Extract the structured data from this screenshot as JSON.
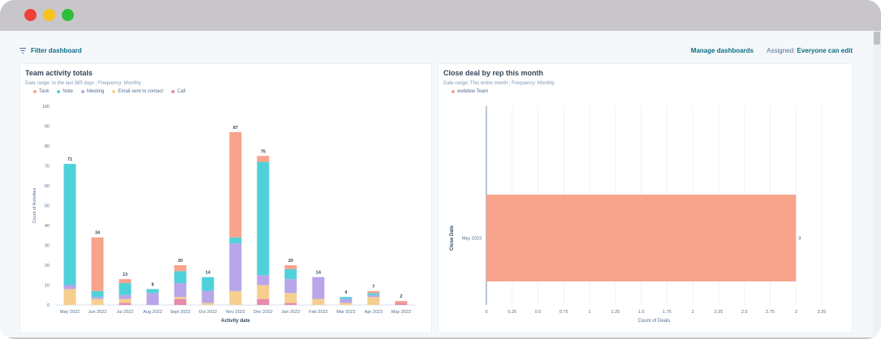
{
  "topbar": {
    "filter_label": "Filter dashboard",
    "manage_label": "Manage dashboards",
    "assigned_label": "Assigned:",
    "assigned_value": "Everyone can edit"
  },
  "colors": {
    "Task": "#f8a38b",
    "Note": "#4fd1d9",
    "Meeting": "#b9a5ea",
    "Email sent to contact": "#f6cf8e",
    "Call": "#e58bab",
    "accent": "#0b6e84"
  },
  "card1": {
    "title": "Team activity totals",
    "date_range": "Date range: In the last 365 days",
    "frequency": "Frequency: Monthly"
  },
  "card2": {
    "title": "Close deal by rep this month",
    "date_range": "Date range: This entire month",
    "frequency": "Frequency: Monthly"
  },
  "chart_data": [
    {
      "type": "bar",
      "stacked": true,
      "xlabel": "Activity date",
      "ylabel": "Count of Activities",
      "ylim": [
        0,
        100
      ],
      "yticks": [
        0,
        10,
        20,
        30,
        40,
        50,
        60,
        70,
        80,
        90,
        100
      ],
      "grid": false,
      "legend_position": "top-left",
      "categories": [
        "May 2022",
        "Jun 2022",
        "Jul 2022",
        "Aug 2022",
        "Sept 2022",
        "Oct 2022",
        "Nov 2022",
        "Dec 2022",
        "Jan 2023",
        "Feb 2023",
        "Mar 2023",
        "Apr 2023",
        "May 2023"
      ],
      "totals": [
        71,
        34,
        13,
        8,
        20,
        14,
        87,
        75,
        20,
        14,
        4,
        7,
        2
      ],
      "series": [
        {
          "name": "Call",
          "values": [
            0,
            0,
            1,
            0,
            3,
            0,
            0,
            3,
            1,
            0,
            0,
            0,
            1
          ]
        },
        {
          "name": "Email sent to contact",
          "values": [
            8,
            3,
            2,
            0,
            1,
            1,
            7,
            7,
            5,
            3,
            1,
            4,
            0
          ]
        },
        {
          "name": "Meeting",
          "values": [
            2,
            1,
            2,
            6,
            7,
            6,
            24,
            5,
            7,
            11,
            2,
            1,
            0
          ]
        },
        {
          "name": "Note",
          "values": [
            61,
            3,
            6,
            2,
            6,
            7,
            3,
            57,
            5,
            0,
            1,
            1,
            0
          ]
        },
        {
          "name": "Task",
          "values": [
            0,
            27,
            2,
            0,
            3,
            0,
            53,
            3,
            2,
            0,
            0,
            1,
            1
          ]
        }
      ]
    },
    {
      "type": "bar",
      "orientation": "horizontal",
      "xlabel": "Count of Deals",
      "ylabel": "Close Date",
      "xlim": [
        0,
        3.25
      ],
      "xticks": [
        "0",
        "0.25",
        "0.5",
        "0.75",
        "1",
        "1.25",
        "1.5",
        "1.75",
        "2",
        "2.25",
        "2.5",
        "2.75",
        "3",
        "3.25"
      ],
      "grid": true,
      "legend_position": "top-left",
      "categories": [
        "May 2023"
      ],
      "series": [
        {
          "name": "webdew Team",
          "values": [
            3
          ]
        }
      ],
      "value_labels": [
        "3"
      ]
    }
  ]
}
